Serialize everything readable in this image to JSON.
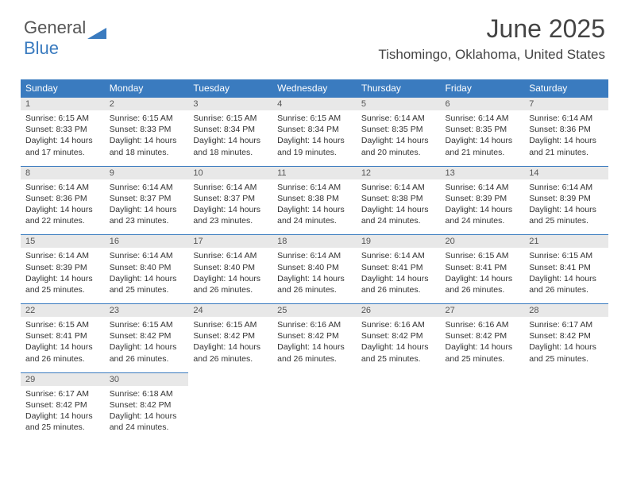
{
  "logo": {
    "part1": "General",
    "part2": "Blue"
  },
  "title": "June 2025",
  "location": "Tishomingo, Oklahoma, United States",
  "header_bg": "#3a7bbf",
  "header_fg": "#ffffff",
  "daynum_bg": "#e8e8e8",
  "border_color": "#3a7bbf",
  "days": [
    "Sunday",
    "Monday",
    "Tuesday",
    "Wednesday",
    "Thursday",
    "Friday",
    "Saturday"
  ],
  "weeks": [
    [
      {
        "n": "1",
        "sunrise": "6:15 AM",
        "sunset": "8:33 PM",
        "daylight": "14 hours and 17 minutes."
      },
      {
        "n": "2",
        "sunrise": "6:15 AM",
        "sunset": "8:33 PM",
        "daylight": "14 hours and 18 minutes."
      },
      {
        "n": "3",
        "sunrise": "6:15 AM",
        "sunset": "8:34 PM",
        "daylight": "14 hours and 18 minutes."
      },
      {
        "n": "4",
        "sunrise": "6:15 AM",
        "sunset": "8:34 PM",
        "daylight": "14 hours and 19 minutes."
      },
      {
        "n": "5",
        "sunrise": "6:14 AM",
        "sunset": "8:35 PM",
        "daylight": "14 hours and 20 minutes."
      },
      {
        "n": "6",
        "sunrise": "6:14 AM",
        "sunset": "8:35 PM",
        "daylight": "14 hours and 21 minutes."
      },
      {
        "n": "7",
        "sunrise": "6:14 AM",
        "sunset": "8:36 PM",
        "daylight": "14 hours and 21 minutes."
      }
    ],
    [
      {
        "n": "8",
        "sunrise": "6:14 AM",
        "sunset": "8:36 PM",
        "daylight": "14 hours and 22 minutes."
      },
      {
        "n": "9",
        "sunrise": "6:14 AM",
        "sunset": "8:37 PM",
        "daylight": "14 hours and 23 minutes."
      },
      {
        "n": "10",
        "sunrise": "6:14 AM",
        "sunset": "8:37 PM",
        "daylight": "14 hours and 23 minutes."
      },
      {
        "n": "11",
        "sunrise": "6:14 AM",
        "sunset": "8:38 PM",
        "daylight": "14 hours and 24 minutes."
      },
      {
        "n": "12",
        "sunrise": "6:14 AM",
        "sunset": "8:38 PM",
        "daylight": "14 hours and 24 minutes."
      },
      {
        "n": "13",
        "sunrise": "6:14 AM",
        "sunset": "8:39 PM",
        "daylight": "14 hours and 24 minutes."
      },
      {
        "n": "14",
        "sunrise": "6:14 AM",
        "sunset": "8:39 PM",
        "daylight": "14 hours and 25 minutes."
      }
    ],
    [
      {
        "n": "15",
        "sunrise": "6:14 AM",
        "sunset": "8:39 PM",
        "daylight": "14 hours and 25 minutes."
      },
      {
        "n": "16",
        "sunrise": "6:14 AM",
        "sunset": "8:40 PM",
        "daylight": "14 hours and 25 minutes."
      },
      {
        "n": "17",
        "sunrise": "6:14 AM",
        "sunset": "8:40 PM",
        "daylight": "14 hours and 26 minutes."
      },
      {
        "n": "18",
        "sunrise": "6:14 AM",
        "sunset": "8:40 PM",
        "daylight": "14 hours and 26 minutes."
      },
      {
        "n": "19",
        "sunrise": "6:14 AM",
        "sunset": "8:41 PM",
        "daylight": "14 hours and 26 minutes."
      },
      {
        "n": "20",
        "sunrise": "6:15 AM",
        "sunset": "8:41 PM",
        "daylight": "14 hours and 26 minutes."
      },
      {
        "n": "21",
        "sunrise": "6:15 AM",
        "sunset": "8:41 PM",
        "daylight": "14 hours and 26 minutes."
      }
    ],
    [
      {
        "n": "22",
        "sunrise": "6:15 AM",
        "sunset": "8:41 PM",
        "daylight": "14 hours and 26 minutes."
      },
      {
        "n": "23",
        "sunrise": "6:15 AM",
        "sunset": "8:42 PM",
        "daylight": "14 hours and 26 minutes."
      },
      {
        "n": "24",
        "sunrise": "6:15 AM",
        "sunset": "8:42 PM",
        "daylight": "14 hours and 26 minutes."
      },
      {
        "n": "25",
        "sunrise": "6:16 AM",
        "sunset": "8:42 PM",
        "daylight": "14 hours and 26 minutes."
      },
      {
        "n": "26",
        "sunrise": "6:16 AM",
        "sunset": "8:42 PM",
        "daylight": "14 hours and 25 minutes."
      },
      {
        "n": "27",
        "sunrise": "6:16 AM",
        "sunset": "8:42 PM",
        "daylight": "14 hours and 25 minutes."
      },
      {
        "n": "28",
        "sunrise": "6:17 AM",
        "sunset": "8:42 PM",
        "daylight": "14 hours and 25 minutes."
      }
    ],
    [
      {
        "n": "29",
        "sunrise": "6:17 AM",
        "sunset": "8:42 PM",
        "daylight": "14 hours and 25 minutes."
      },
      {
        "n": "30",
        "sunrise": "6:18 AM",
        "sunset": "8:42 PM",
        "daylight": "14 hours and 24 minutes."
      },
      null,
      null,
      null,
      null,
      null
    ]
  ],
  "labels": {
    "sunrise": "Sunrise: ",
    "sunset": "Sunset: ",
    "daylight": "Daylight: "
  }
}
